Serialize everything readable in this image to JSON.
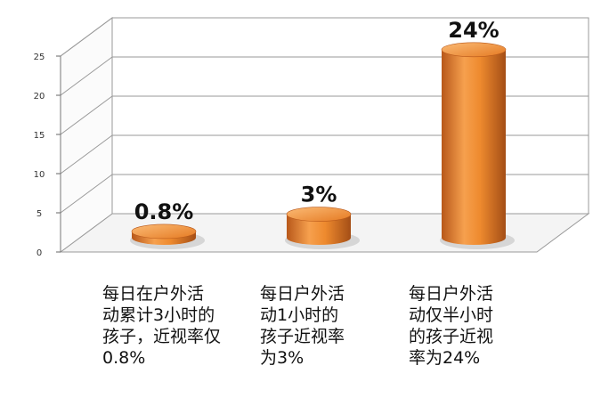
{
  "chart_data": {
    "type": "bar",
    "categories": [
      "每日在户外活\n动累计3小时的\n孩子，近视率仅\n0.8%",
      "每日户外活\n动1小时的\n孩子近视率\n为3%",
      "每日户外活\n动仅半小时\n的孩子近视\n率为24%"
    ],
    "values": [
      0.8,
      3,
      24
    ],
    "data_labels": [
      "0.8%",
      "3%",
      "24%"
    ],
    "yticks": [
      "0",
      "5",
      "10",
      "15",
      "20",
      "25"
    ],
    "ylim": [
      0,
      25
    ],
    "grid": true,
    "legend": "none",
    "colors": {
      "bar": "#EE8A2E",
      "bar_dark": "#B8581A",
      "bar_light": "#FBBB76",
      "grid": "#9a9a9a"
    }
  }
}
